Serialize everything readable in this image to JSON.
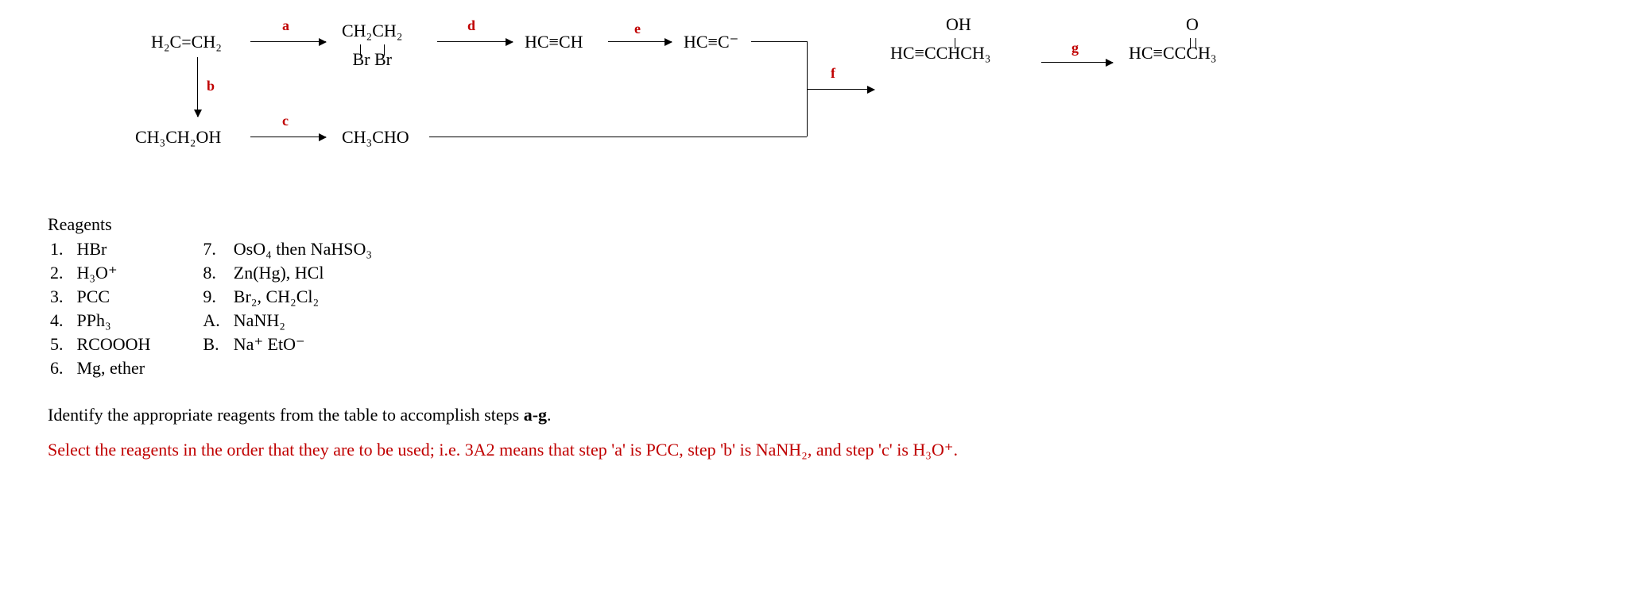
{
  "scheme": {
    "nodes": {
      "ethylene": "H₂C=CH₂",
      "dibromo_top": "CH₂CH₂",
      "dibromo_bot": "Br   Br",
      "ethanol": "CH₃CH₂OH",
      "acetal": "CH₃CHO",
      "acetylene": "HC≡CH",
      "acetylide": "HC≡C⁻",
      "butynol_main": "HC≡CCHCH₃",
      "butynol_oh": "OH",
      "butynone_main": "HC≡CCCH₃",
      "butynone_o": "O"
    },
    "steps": {
      "a": "a",
      "b": "b",
      "c": "c",
      "d": "d",
      "e": "e",
      "f": "f",
      "g": "g"
    },
    "colors": {
      "step_label": "#c00000",
      "text": "#000000",
      "bg": "#ffffff"
    }
  },
  "reagents": {
    "title": "Reagents",
    "col1": [
      {
        "n": "1.",
        "t": "HBr"
      },
      {
        "n": "2.",
        "t": "H₃O⁺"
      },
      {
        "n": "3.",
        "t": "PCC"
      },
      {
        "n": "4.",
        "t": "PPh₃"
      },
      {
        "n": "5.",
        "t": "RCOOOH"
      },
      {
        "n": "6.",
        "t": "Mg, ether"
      }
    ],
    "col2": [
      {
        "n": "7.",
        "t": "OsO₄ then NaHSO₃"
      },
      {
        "n": "8.",
        "t": "Zn(Hg), HCl"
      },
      {
        "n": "9.",
        "t": "Br₂, CH₂Cl₂"
      },
      {
        "n": "A.",
        "t": "NaNH₂"
      },
      {
        "n": "B.",
        "t": "Na⁺ EtO⁻"
      }
    ]
  },
  "question": {
    "prompt_pre": "Identify the appropriate reagents from the table to accomplish steps ",
    "prompt_bold": "a-g",
    "prompt_post": ".",
    "hint": "Select the reagents in the order that they are to be used; i.e. 3A2 means that step 'a' is PCC, step 'b' is NaNH₂, and step 'c' is H₃O⁺."
  }
}
